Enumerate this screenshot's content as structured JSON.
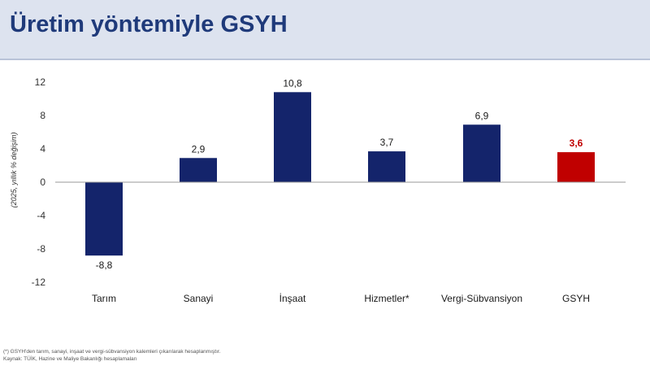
{
  "page_title": "Üretim yöntemiyle GSYH",
  "chart_data": {
    "type": "bar",
    "title": "",
    "xlabel": "",
    "ylabel": "(2025, yıllık % değişim)",
    "categories": [
      "Tarım",
      "Sanayi",
      "İnşaat",
      "Hizmetler*",
      "Vergi-Sübvansiyon",
      "GSYH"
    ],
    "values": [
      -8.8,
      2.9,
      10.8,
      3.7,
      6.9,
      3.6
    ],
    "value_labels": [
      "-8,8",
      "2,9",
      "10,8",
      "3,7",
      "6,9",
      "3,6"
    ],
    "ylim": [
      -12,
      12
    ],
    "yticks": [
      12,
      8,
      4,
      0,
      -4,
      -8,
      -12
    ],
    "grid": false,
    "legend": "none",
    "colors": {
      "default": "#14246b",
      "highlight": "#c00000",
      "highlight_index": 5
    }
  },
  "footnotes": {
    "note": "(*) GSYH'den tarım, sanayi, inşaat ve vergi-sübvansiyon kalemleri çıkarılarak hesaplanmıştır.",
    "source": "Kaynak: TÜİK, Hazine ve Maliye Bakanlığı hesaplamaları"
  }
}
